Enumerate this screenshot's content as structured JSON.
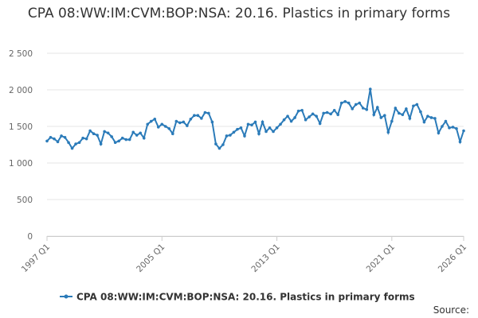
{
  "chart_data": {
    "type": "line",
    "title": "CPA 08:WW:IM:CVM:BOP:NSA: 20.16. Plastics in primary forms",
    "source": "Source:",
    "categories": [
      "1997 Q1",
      null,
      null,
      null,
      null,
      null,
      null,
      null,
      null,
      null,
      null,
      null,
      null,
      null,
      null,
      null,
      null,
      null,
      null,
      null,
      null,
      null,
      null,
      null,
      null,
      null,
      null,
      null,
      null,
      null,
      null,
      null,
      "2005 Q1",
      null,
      null,
      null,
      null,
      null,
      null,
      null,
      null,
      null,
      null,
      null,
      null,
      null,
      null,
      null,
      null,
      null,
      null,
      null,
      null,
      null,
      null,
      null,
      null,
      null,
      null,
      null,
      null,
      null,
      null,
      null,
      "2013 Q1",
      null,
      null,
      null,
      null,
      null,
      null,
      null,
      null,
      null,
      null,
      null,
      null,
      null,
      null,
      null,
      null,
      null,
      null,
      null,
      null,
      null,
      null,
      null,
      null,
      null,
      null,
      null,
      null,
      null,
      null,
      null,
      "2021 Q1",
      null,
      null,
      null,
      null,
      null,
      null,
      null,
      null,
      null,
      null,
      null,
      null,
      null,
      null,
      null,
      null,
      null,
      null,
      null,
      "2026 Q1"
    ],
    "series": [
      {
        "name": "CPA 08:WW:IM:CVM:BOP:NSA: 20.16. Plastics in primary forms",
        "color": "#2b7bb9",
        "values": [
          1300,
          1350,
          1330,
          1290,
          1370,
          1350,
          1280,
          1200,
          1260,
          1280,
          1340,
          1330,
          1440,
          1400,
          1380,
          1260,
          1430,
          1410,
          1360,
          1280,
          1300,
          1340,
          1320,
          1320,
          1420,
          1380,
          1410,
          1340,
          1530,
          1570,
          1600,
          1490,
          1530,
          1500,
          1470,
          1400,
          1570,
          1550,
          1560,
          1510,
          1600,
          1650,
          1650,
          1610,
          1690,
          1680,
          1560,
          1260,
          1200,
          1250,
          1370,
          1380,
          1420,
          1460,
          1480,
          1370,
          1530,
          1520,
          1560,
          1400,
          1560,
          1430,
          1480,
          1430,
          1480,
          1530,
          1590,
          1640,
          1570,
          1620,
          1710,
          1720,
          1590,
          1630,
          1670,
          1640,
          1540,
          1680,
          1690,
          1670,
          1720,
          1660,
          1820,
          1840,
          1820,
          1740,
          1800,
          1820,
          1750,
          1730,
          2010,
          1660,
          1760,
          1620,
          1650,
          1420,
          1570,
          1750,
          1680,
          1660,
          1740,
          1610,
          1780,
          1800,
          1700,
          1560,
          1640,
          1620,
          1610,
          1410,
          1500,
          1570,
          1480,
          1490,
          1470,
          1290,
          1440
        ]
      }
    ],
    "ylim": [
      0,
      2500
    ],
    "yticks": [
      0,
      500,
      {
        "value": 1000,
        "label": "1 000"
      },
      {
        "value": 1500,
        "label": "1 500"
      },
      {
        "value": 2000,
        "label": "2 000"
      },
      {
        "value": 2500,
        "label": "2 500"
      }
    ],
    "grid": true
  }
}
